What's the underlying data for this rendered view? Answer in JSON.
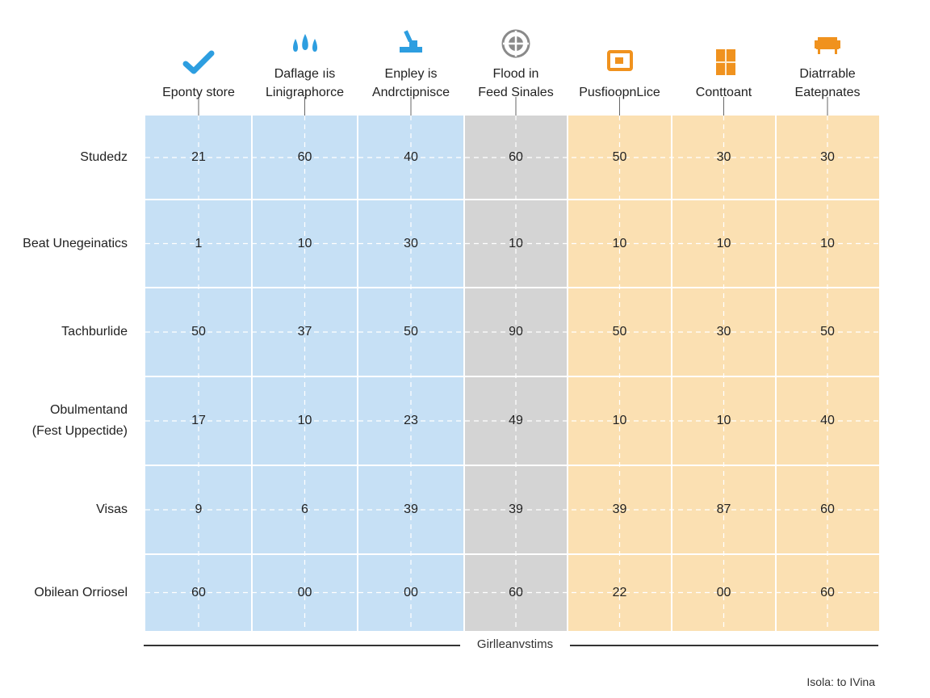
{
  "chart_data": {
    "type": "heatmap",
    "columns": [
      {
        "label": "Eponty store",
        "group": "blue",
        "icon": "checkmark-icon"
      },
      {
        "label": "Daflage ıis\nLinigraphorce",
        "group": "blue",
        "icon": "water-drops-icon"
      },
      {
        "label": "Enpley is\nAndrctipnisce",
        "group": "blue",
        "icon": "hammer-icon"
      },
      {
        "label": "Flood in\nFeed Sinales",
        "group": "gray",
        "icon": "target-icon"
      },
      {
        "label": "PusfioopnLice",
        "group": "orange",
        "icon": "monitor-icon"
      },
      {
        "label": "Conttoant",
        "group": "orange",
        "icon": "document-icon"
      },
      {
        "label": "Diatrrable\nEatepnates",
        "group": "orange",
        "icon": "sofa-icon"
      }
    ],
    "rows": [
      {
        "label": "Studedz",
        "values": [
          21,
          60,
          40,
          60,
          50,
          30,
          30
        ]
      },
      {
        "label": "Beat Unegeinatics",
        "values": [
          1,
          10,
          30,
          10,
          10,
          10,
          10
        ]
      },
      {
        "label": "Tachburlide",
        "values": [
          50,
          37,
          50,
          90,
          50,
          30,
          50
        ]
      },
      {
        "label": "Obulmentand\n(Fest Uppectide)",
        "values": [
          17,
          10,
          23,
          49,
          10,
          10,
          40
        ]
      },
      {
        "label": "Visas",
        "values": [
          9,
          6,
          39,
          39,
          39,
          87,
          60
        ]
      },
      {
        "label": "Obilean Orriosel",
        "value_text": [
          "60",
          "00",
          "00",
          "60",
          "22",
          "00",
          "60"
        ],
        "values": [
          60,
          0,
          0,
          60,
          22,
          0,
          60
        ]
      }
    ],
    "legend": "Girlleanvstims",
    "footnote": "Isola: to IVina",
    "grid": true,
    "colors": {
      "blue": "#c6e0f5",
      "gray": "#d4d4d4",
      "orange": "#fbe0b2",
      "icon_blue": "#2d9ee0",
      "icon_gray": "#8a8a8a",
      "icon_orange": "#f0921e"
    }
  }
}
